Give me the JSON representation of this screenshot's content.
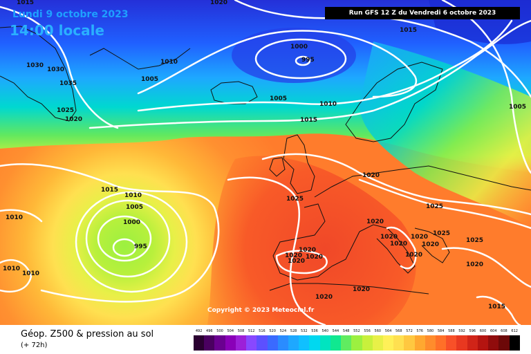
{
  "header": {
    "date": "Lundi 9 octobre 2023",
    "time": "14:00 locale",
    "run": "Run GFS 12 Z du Vendredi 6 octobre 2023"
  },
  "copyright": "Copyright © 2023 Meteociel.fr",
  "caption": {
    "title": "Géop. Z500 & pression au sol",
    "subtitle": "(+ 72h)"
  },
  "scale": {
    "labels": [
      "492",
      "496",
      "500",
      "504",
      "508",
      "512",
      "516",
      "520",
      "524",
      "528",
      "532",
      "536",
      "540",
      "544",
      "548",
      "552",
      "556",
      "560",
      "564",
      "568",
      "572",
      "576",
      "580",
      "584",
      "588",
      "592",
      "596",
      "600",
      "604",
      "608",
      "612"
    ],
    "colors": [
      "#2a0030",
      "#4a0060",
      "#6a0090",
      "#8a00b8",
      "#9c20d8",
      "#8848ff",
      "#5c50ff",
      "#3a6aff",
      "#2a8cff",
      "#1ea8ff",
      "#10c0ff",
      "#00d8f0",
      "#00e4c0",
      "#10e890",
      "#60ec60",
      "#9cf040",
      "#c8f03c",
      "#e8f048",
      "#fff058",
      "#ffe050",
      "#ffc840",
      "#ffa830",
      "#ff8c2c",
      "#ff7028",
      "#f85028",
      "#e83820",
      "#d02418",
      "#b41410",
      "#900c0c",
      "#6c0808",
      "#000000"
    ]
  },
  "pressure_labels": [
    "1015",
    "1020",
    "1030",
    "1030",
    "1035",
    "1025",
    "1020",
    "1010",
    "1005",
    "1000",
    "995",
    "1015",
    "1005",
    "1010",
    "1015",
    "1005",
    "1020",
    "1025",
    "1015",
    "1010",
    "1005",
    "1000",
    "995",
    "1010",
    "1010",
    "1010",
    "1025",
    "1020",
    "1020",
    "1020",
    "1020",
    "1020",
    "1020",
    "1025",
    "1020",
    "1020",
    "1020",
    "1020",
    "1025",
    "1020",
    "1015"
  ]
}
